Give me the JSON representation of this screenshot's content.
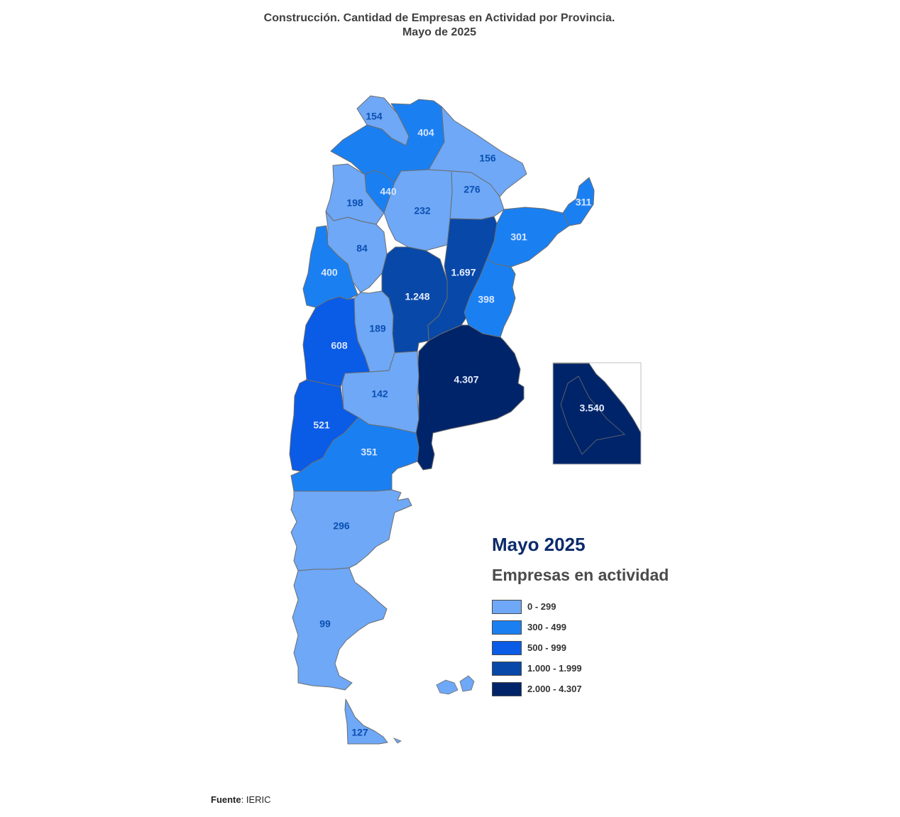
{
  "title": {
    "line1": "Construcción. Cantidad de Empresas en Actividad por Provincia.",
    "line2": "Mayo de 2025"
  },
  "colors": {
    "c1": "#6ea8f7",
    "c2": "#1a80f2",
    "c3": "#0a5be6",
    "c4": "#0848a8",
    "c5": "#002469",
    "border": "#6d6d6d"
  },
  "provinces": [
    {
      "id": "jujuy",
      "value": "154",
      "cls": "c1"
    },
    {
      "id": "salta",
      "value": "404",
      "cls": "c2"
    },
    {
      "id": "formosa",
      "value": "156",
      "cls": "c1"
    },
    {
      "id": "chaco",
      "value": "276",
      "cls": "c1"
    },
    {
      "id": "misiones",
      "value": "311",
      "cls": "c2"
    },
    {
      "id": "tucuman",
      "value": "440",
      "cls": "c2"
    },
    {
      "id": "catamarca",
      "value": "198",
      "cls": "c1"
    },
    {
      "id": "santiago",
      "value": "232",
      "cls": "c1"
    },
    {
      "id": "corrientes",
      "value": "301",
      "cls": "c2"
    },
    {
      "id": "larioja",
      "value": "84",
      "cls": "c1"
    },
    {
      "id": "sanjuan",
      "value": "400",
      "cls": "c2"
    },
    {
      "id": "santafe",
      "value": "1.697",
      "cls": "c4"
    },
    {
      "id": "cordoba",
      "value": "1.248",
      "cls": "c4"
    },
    {
      "id": "entrerios",
      "value": "398",
      "cls": "c2"
    },
    {
      "id": "sanluis",
      "value": "189",
      "cls": "c1"
    },
    {
      "id": "mendoza",
      "value": "608",
      "cls": "c3"
    },
    {
      "id": "buenosaires",
      "value": "4.307",
      "cls": "c5"
    },
    {
      "id": "lapampa",
      "value": "142",
      "cls": "c1"
    },
    {
      "id": "neuquen",
      "value": "521",
      "cls": "c3"
    },
    {
      "id": "rionegro",
      "value": "351",
      "cls": "c2"
    },
    {
      "id": "chubut",
      "value": "296",
      "cls": "c1"
    },
    {
      "id": "santacruz",
      "value": "99",
      "cls": "c1"
    },
    {
      "id": "tierradelfuego",
      "value": "127",
      "cls": "c1"
    },
    {
      "id": "caba",
      "value": "3.540",
      "cls": "c5"
    }
  ],
  "legend": {
    "year": "Mayo 2025",
    "subtitle": "Empresas en actividad",
    "items": [
      {
        "label": "0 - 299",
        "color": "#6ea8f7"
      },
      {
        "label": "300 - 499",
        "color": "#1a80f2"
      },
      {
        "label": "500 - 999",
        "color": "#0a5be6"
      },
      {
        "label": "1.000 - 1.999",
        "color": "#0848a8"
      },
      {
        "label": "2.000 - 4.307",
        "color": "#002469"
      }
    ]
  },
  "source": {
    "label": "Fuente",
    "text": ": IERIC"
  }
}
